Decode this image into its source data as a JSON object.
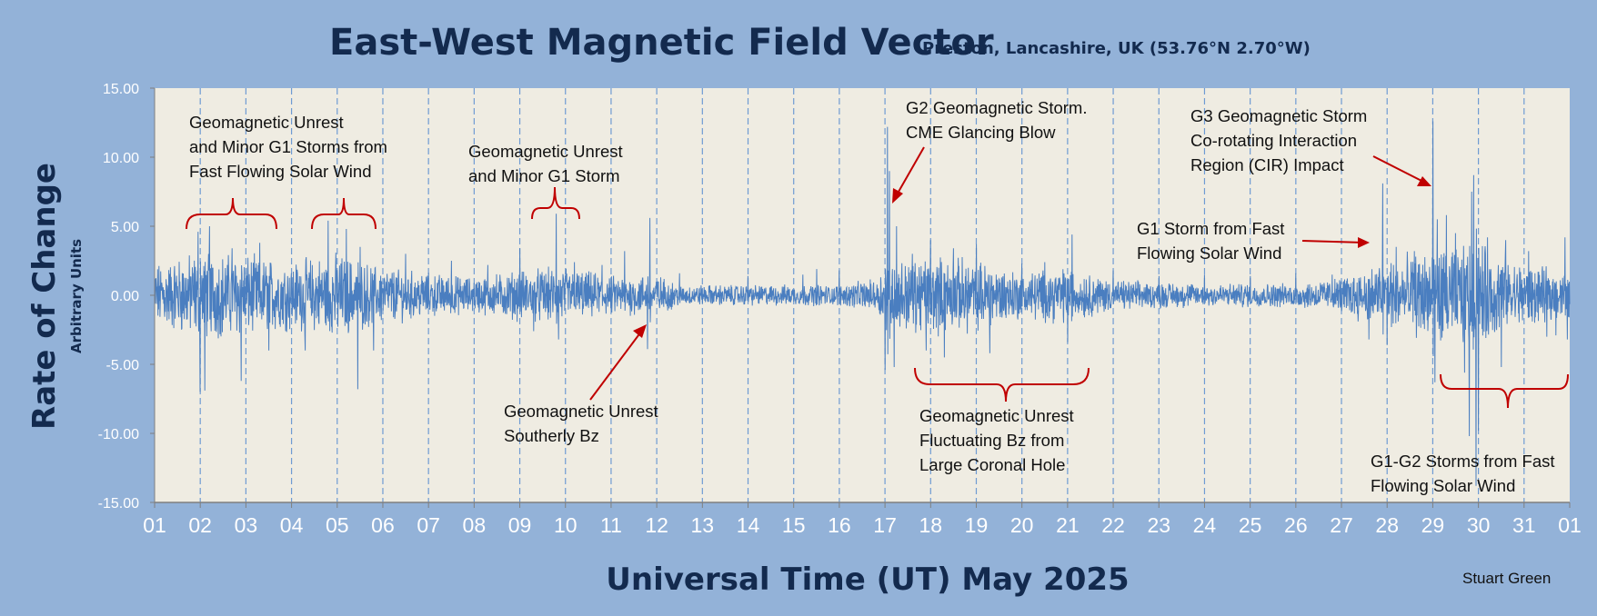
{
  "chart_data": {
    "type": "line",
    "title": "East-West Magnetic Field Vector",
    "subtitle": "Preston, Lancashire, UK  (53.76°N 2.70°W)",
    "xlabel": "Universal Time (UT) May 2025",
    "ylabel": "Rate of Change",
    "ylabel_sub": "Arbitrary Units",
    "credit": "Stuart Green",
    "ylim": [
      -15,
      15
    ],
    "xlim": [
      1,
      32
    ],
    "yticks": [
      "15.00",
      "10.00",
      "5.00",
      "0.00",
      "-5.00",
      "-10.00",
      "-15.00"
    ],
    "yticks_values": [
      15,
      10,
      5,
      0,
      -5,
      -10,
      -15
    ],
    "xticks": [
      "01",
      "02",
      "03",
      "04",
      "05",
      "06",
      "07",
      "08",
      "09",
      "10",
      "11",
      "12",
      "13",
      "14",
      "15",
      "16",
      "17",
      "18",
      "19",
      "20",
      "21",
      "22",
      "23",
      "24",
      "25",
      "26",
      "27",
      "28",
      "29",
      "30",
      "31",
      "01"
    ],
    "grid": "vertical dashed at each day",
    "series": [
      {
        "color": "#4a7ec0",
        "spikes": [
          [
            1.95,
            4.6
          ],
          [
            2.0,
            -7.0
          ],
          [
            2.1,
            -6.9
          ],
          [
            2.2,
            5.0
          ],
          [
            2.7,
            3.4
          ],
          [
            2.9,
            -6.2
          ],
          [
            3.3,
            3.8
          ],
          [
            3.5,
            -4.0
          ],
          [
            4.3,
            -4.0
          ],
          [
            4.8,
            5.4
          ],
          [
            5.2,
            4.8
          ],
          [
            5.45,
            -6.8
          ],
          [
            5.5,
            3.5
          ],
          [
            5.8,
            -4.0
          ],
          [
            6.5,
            3.0
          ],
          [
            7.5,
            2.5
          ],
          [
            8.3,
            2.2
          ],
          [
            9.0,
            3.4
          ],
          [
            9.3,
            -2.6
          ],
          [
            9.8,
            5.9
          ],
          [
            9.85,
            -3.2
          ],
          [
            10.2,
            2.4
          ],
          [
            10.8,
            2.2
          ],
          [
            11.3,
            3.2
          ],
          [
            11.8,
            -3.9
          ],
          [
            11.85,
            5.6
          ],
          [
            12.5,
            1.6
          ],
          [
            14.0,
            1.4
          ],
          [
            15.2,
            1.5
          ],
          [
            15.5,
            1.9
          ],
          [
            16.0,
            1.8
          ],
          [
            17.0,
            -5.4
          ],
          [
            17.05,
            12.2
          ],
          [
            17.1,
            9.0
          ],
          [
            17.2,
            -5.2
          ],
          [
            17.25,
            5.0
          ],
          [
            17.6,
            3.0
          ],
          [
            17.9,
            -4.0
          ],
          [
            18.0,
            4.0
          ],
          [
            18.3,
            -4.5
          ],
          [
            18.5,
            3.4
          ],
          [
            19.0,
            3.7
          ],
          [
            19.3,
            -4.2
          ],
          [
            20.0,
            2.3
          ],
          [
            20.5,
            2.4
          ],
          [
            21.0,
            -3.4
          ],
          [
            21.1,
            4.4
          ],
          [
            22.0,
            1.8
          ],
          [
            23.0,
            1.4
          ],
          [
            24.0,
            1.5
          ],
          [
            25.0,
            1.4
          ],
          [
            26.0,
            1.6
          ],
          [
            26.8,
            1.5
          ],
          [
            27.6,
            -3.2
          ],
          [
            27.9,
            8.1
          ],
          [
            28.0,
            -3.6
          ],
          [
            28.2,
            3.5
          ],
          [
            28.6,
            3.2
          ],
          [
            29.0,
            12.6
          ],
          [
            29.05,
            -6.3
          ],
          [
            29.1,
            5.5
          ],
          [
            29.3,
            5.8
          ],
          [
            29.5,
            4.5
          ],
          [
            29.7,
            -5.6
          ],
          [
            29.8,
            -10.2
          ],
          [
            29.85,
            7.5
          ],
          [
            29.9,
            8.7
          ],
          [
            29.95,
            -13.8
          ],
          [
            30.0,
            -9.8
          ],
          [
            30.2,
            4.2
          ],
          [
            30.5,
            -5.2
          ],
          [
            30.6,
            4.0
          ],
          [
            31.1,
            3.2
          ],
          [
            31.5,
            -3.0
          ],
          [
            31.7,
            -2.9
          ],
          [
            31.9,
            4.2
          ],
          [
            31.95,
            -3.2
          ]
        ],
        "envelope": [
          [
            1.0,
            2.1
          ],
          [
            2.0,
            3.0
          ],
          [
            3.0,
            2.7
          ],
          [
            4.0,
            2.3
          ],
          [
            5.0,
            2.8
          ],
          [
            6.0,
            1.9
          ],
          [
            7.0,
            1.5
          ],
          [
            8.0,
            1.2
          ],
          [
            9.0,
            1.7
          ],
          [
            10.0,
            1.9
          ],
          [
            11.0,
            1.3
          ],
          [
            12.0,
            1.4
          ],
          [
            12.5,
            0.7
          ],
          [
            16.0,
            0.7
          ],
          [
            16.8,
            1.1
          ],
          [
            17.0,
            2.2
          ],
          [
            18.0,
            2.6
          ],
          [
            19.0,
            2.4
          ],
          [
            20.0,
            1.6
          ],
          [
            21.0,
            1.9
          ],
          [
            22.0,
            1.0
          ],
          [
            24.0,
            0.8
          ],
          [
            26.0,
            0.8
          ],
          [
            27.0,
            1.2
          ],
          [
            28.0,
            2.4
          ],
          [
            29.0,
            3.0
          ],
          [
            30.0,
            3.5
          ],
          [
            31.0,
            2.0
          ],
          [
            32.0,
            1.6
          ]
        ]
      }
    ],
    "annotations": [
      {
        "lines": [
          "Geomagnetic Unrest",
          "and Minor G1 Storms from",
          "Fast Flowing Solar Wind"
        ]
      },
      {
        "lines": [
          "Geomagnetic Unrest",
          "and Minor G1 Storm"
        ]
      },
      {
        "lines": [
          "Geomagnetic Unrest",
          "Southerly Bz"
        ]
      },
      {
        "lines": [
          "G2 Geomagnetic Storm.",
          "CME Glancing Blow"
        ]
      },
      {
        "lines": [
          "Geomagnetic Unrest",
          "Fluctuating Bz from",
          "Large Coronal Hole"
        ]
      },
      {
        "lines": [
          "G3 Geomagnetic Storm",
          "Co-rotating Interaction",
          "Region (CIR) Impact"
        ]
      },
      {
        "lines": [
          "G1 Storm from Fast",
          "Flowing Solar Wind"
        ]
      },
      {
        "lines": [
          "G1-G2 Storms from Fast",
          "Flowing Solar Wind"
        ]
      }
    ],
    "colors": {
      "background": "#93b2d8",
      "plot_area": "#efece2",
      "line": "#4a7ec0",
      "annotation_red": "#c00000",
      "title": "#132a4e"
    }
  }
}
